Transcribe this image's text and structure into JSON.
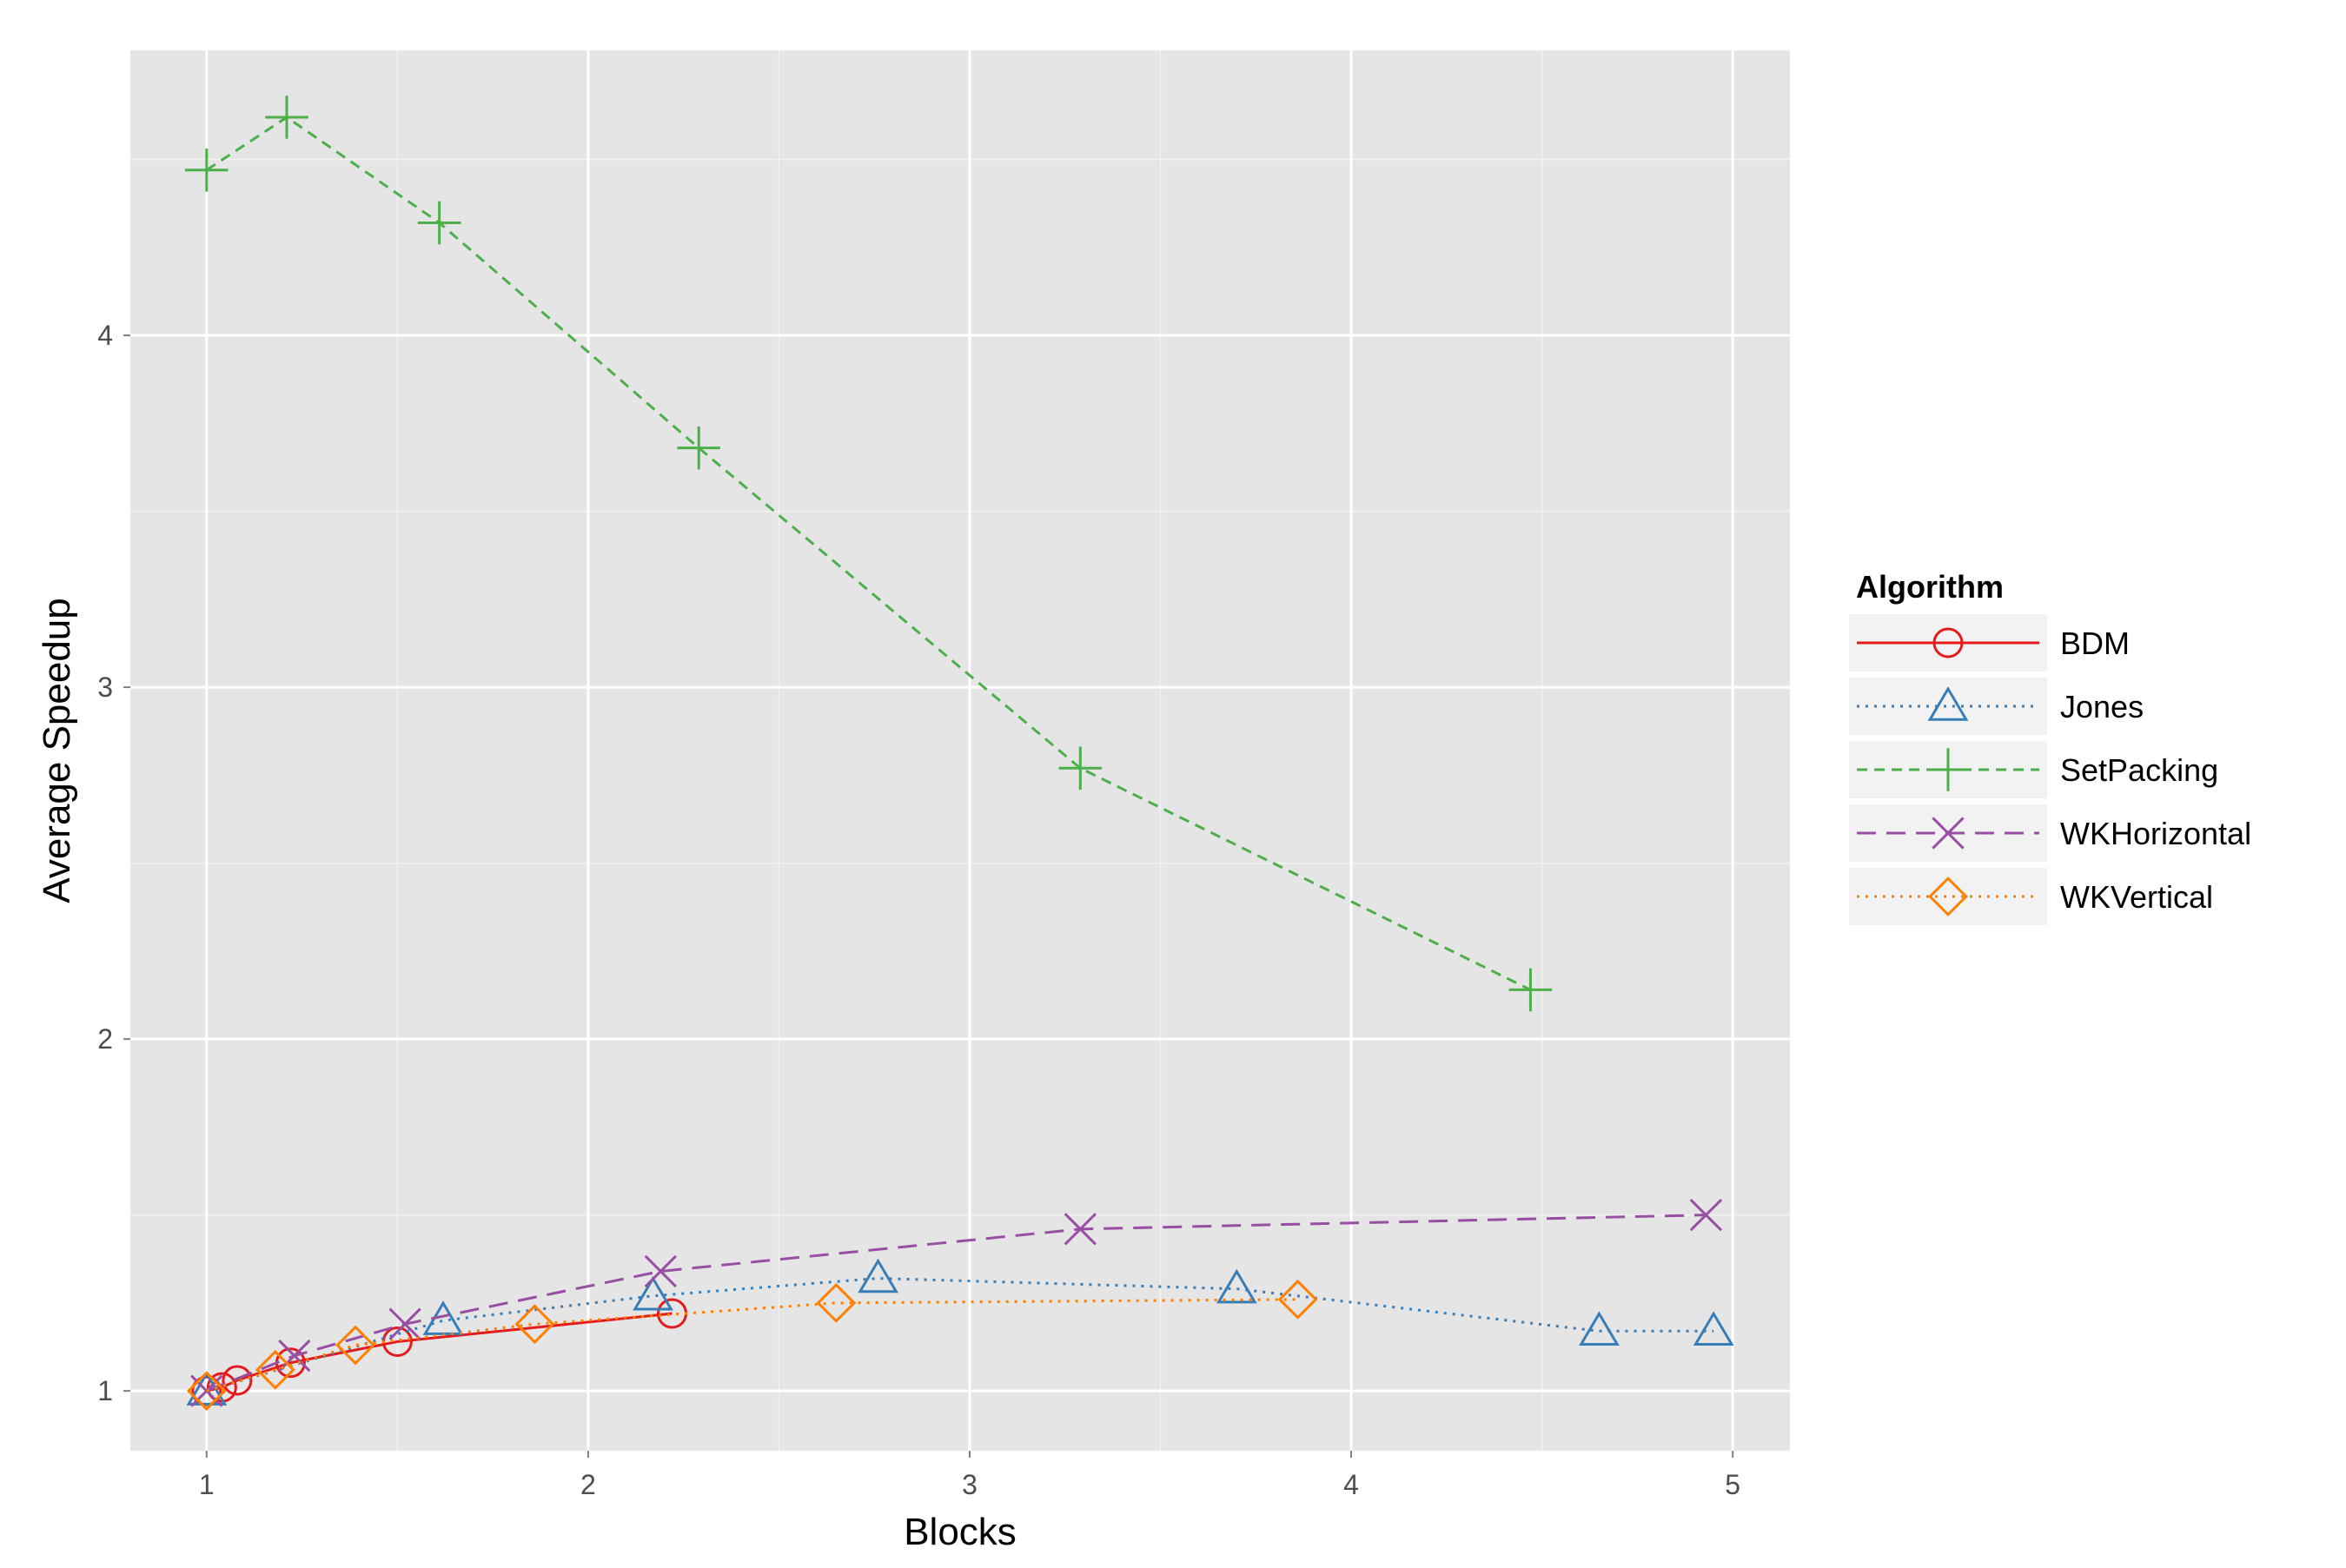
{
  "chart_data": {
    "type": "line",
    "title": "",
    "xlabel": "Blocks",
    "ylabel": "Average Speedup",
    "xlim": [
      0.8,
      5.15
    ],
    "ylim": [
      0.83,
      4.81
    ],
    "x_ticks": [
      "1",
      "2",
      "3",
      "4",
      "5"
    ],
    "y_ticks": [
      "1",
      "2",
      "3",
      "4"
    ],
    "grid": true,
    "legend": {
      "title": "Algorithm",
      "placement": "right"
    },
    "series": [
      {
        "name": "BDM",
        "color": "#e41a1c",
        "line_style": "solid",
        "marker": "circle",
        "x": [
          1.0,
          1.04,
          1.08,
          1.22,
          1.5,
          2.22
        ],
        "y": [
          1.0,
          1.01,
          1.03,
          1.08,
          1.14,
          1.22
        ]
      },
      {
        "name": "Jones",
        "color": "#377eb8",
        "line_style": "dotted",
        "marker": "triangle",
        "x": [
          1.0,
          1.62,
          2.17,
          2.76,
          3.7,
          4.65,
          4.95
        ],
        "y": [
          1.0,
          1.2,
          1.27,
          1.32,
          1.29,
          1.17,
          1.17
        ]
      },
      {
        "name": "SetPacking",
        "color": "#4daf4a",
        "line_style": "dashed",
        "marker": "plus",
        "x": [
          1.0,
          1.21,
          1.61,
          2.29,
          3.29,
          4.47
        ],
        "y": [
          4.47,
          4.62,
          4.32,
          3.68,
          2.77,
          2.14
        ]
      },
      {
        "name": "WKHorizontal",
        "color": "#984ea3",
        "line_style": "longdash",
        "marker": "cross",
        "x": [
          1.0,
          1.23,
          1.52,
          2.19,
          3.29,
          4.93
        ],
        "y": [
          1.0,
          1.1,
          1.19,
          1.34,
          1.46,
          1.5
        ]
      },
      {
        "name": "WKVertical",
        "color": "#ff7f00",
        "line_style": "dotted",
        "marker": "diamond",
        "x": [
          1.0,
          1.18,
          1.39,
          1.86,
          2.65,
          3.86
        ],
        "y": [
          1.0,
          1.06,
          1.13,
          1.19,
          1.25,
          1.26
        ]
      }
    ]
  }
}
